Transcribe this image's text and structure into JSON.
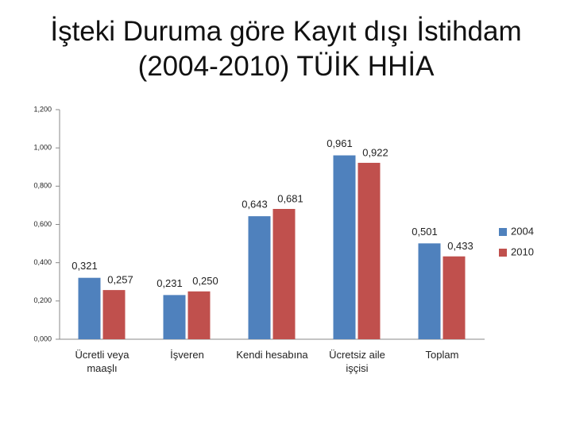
{
  "chart_data": {
    "type": "bar",
    "title": "İşteki Duruma göre Kayıt dışı İstihdam (2004-2010) TÜİK HHİA",
    "categories": [
      "Ücretli veya maaşlı",
      "İşveren",
      "Kendi hesabına",
      "Ücretsiz aile işçisi",
      "Toplam"
    ],
    "series": [
      {
        "name": "2004",
        "color": "#4f81bd",
        "values": [
          0.321,
          0.231,
          0.643,
          0.961,
          0.501
        ],
        "value_labels": [
          "0,321",
          "0,231",
          "0,643",
          "0,961",
          "0,501"
        ]
      },
      {
        "name": "2010",
        "color": "#c0504d",
        "values": [
          0.257,
          0.25,
          0.681,
          0.922,
          0.433
        ],
        "value_labels": [
          "0,257",
          "0,250",
          "0,681",
          "0,922",
          "0,433"
        ]
      }
    ],
    "ylim": [
      0,
      1.2
    ],
    "yticks": [
      {
        "value": 0,
        "label": "0,000"
      },
      {
        "value": 0.2,
        "label": "0,200"
      },
      {
        "value": 0.4,
        "label": "0,400"
      },
      {
        "value": 0.6,
        "label": "0,600"
      },
      {
        "value": 0.8,
        "label": "0,800"
      },
      {
        "value": 1.0,
        "label": "1,000"
      },
      {
        "value": 1.2,
        "label": "1,200"
      }
    ],
    "grid": false,
    "legend": "right"
  }
}
